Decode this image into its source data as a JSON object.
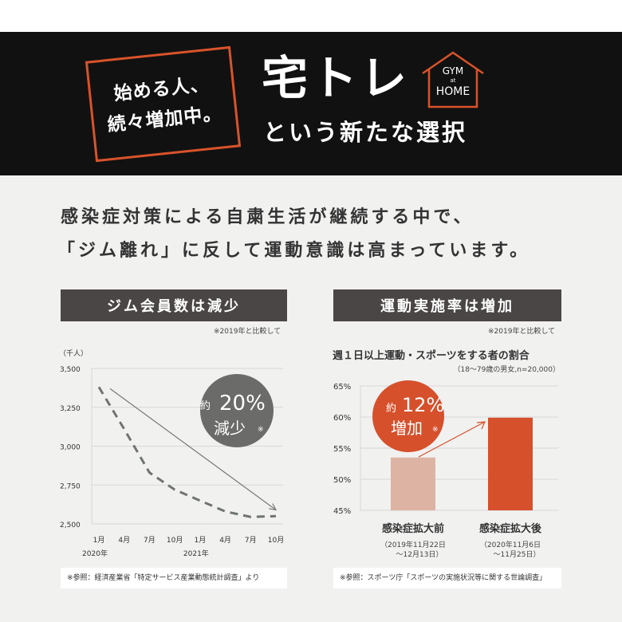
{
  "banner": {
    "tag_line1": "始める人、",
    "tag_line2": "続々増加中。",
    "title": "宅トレ",
    "subtitle": "という新たな選択",
    "logo_top": "GYM",
    "logo_mid": "at",
    "logo_bottom": "HOME",
    "accent_color": "#d9532b"
  },
  "headline": {
    "line1": "感染症対策による自粛生活が継続する中で、",
    "line2": "「ジム離れ」に反して運動意識は高まっています。"
  },
  "left_panel": {
    "header": "ジム会員数は減少",
    "compare_note": "※2019年と比較して",
    "badge_small": "約",
    "badge_value": "20%",
    "badge_text": "減少",
    "badge_mark": "※",
    "source": "※参照：経済産業省「特定サービス産業動態統計調査」より"
  },
  "right_panel": {
    "header": "運動実施率は増加",
    "compare_note": "※2019年と比較して",
    "chart_title": "週１日以上運動・スポーツをする者の割合",
    "chart_subtitle": "（18～79歳の男女,n=20,000）",
    "badge_small": "約",
    "badge_value": "12%",
    "badge_text": "増加",
    "badge_mark": "※",
    "bar1_label": "感染症拡大前",
    "bar1_date1": "（2019年11月22日",
    "bar1_date2": "～12月13日）",
    "bar2_label": "感染症拡大後",
    "bar2_date1": "（2020年11月6日",
    "bar2_date2": "～11月25日）",
    "source": "※参照：スポーツ庁「スポーツの実施状況等に関する世論調査」"
  },
  "chart_data": [
    {
      "type": "line",
      "ylabel": "（千人）",
      "ylim": [
        2500,
        3500
      ],
      "yticks": [
        "3,500",
        "3,250",
        "3,000",
        "2,750",
        "2,500"
      ],
      "ytick_values": [
        3500,
        3250,
        3000,
        2750,
        2500
      ],
      "categories": [
        "1月",
        "4月",
        "7月",
        "10月",
        "1月",
        "4月",
        "7月",
        "10月"
      ],
      "year_labels": [
        "2020年",
        "2021年"
      ],
      "series": [
        {
          "values": [
            3380,
            3110,
            2830,
            2720,
            2650,
            2580,
            2545,
            2550
          ],
          "color": "#6f7470",
          "style": "dashed"
        }
      ],
      "trend": {
        "from": [
          0,
          3370
        ],
        "to": [
          7,
          2590
        ],
        "color": "#777777"
      },
      "grid": true,
      "badge_color": "#6b6b6a"
    },
    {
      "type": "bar",
      "categories": [
        "感染症拡大前",
        "感染症拡大後"
      ],
      "values": [
        53.5,
        59.9
      ],
      "colors": [
        "#ddb3a4",
        "#d6502b"
      ],
      "ylim": [
        45,
        65
      ],
      "yticks": [
        "65%",
        "60%",
        "55%",
        "50%",
        "45%"
      ],
      "ytick_values": [
        65,
        60,
        55,
        50,
        45
      ],
      "grid": true
    }
  ]
}
